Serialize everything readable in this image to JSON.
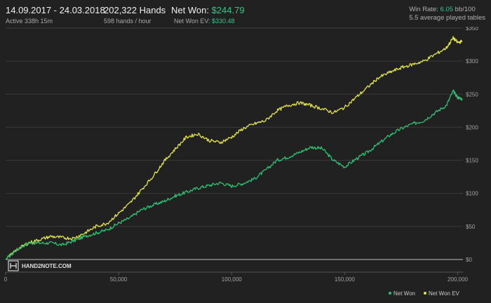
{
  "header": {
    "date_range": "14.09.2017 - 24.03.2018",
    "active": "Active 338h 15m",
    "hands": "202,322 Hands",
    "hands_per_hour": "598 hands / hour",
    "net_won_label": "Net Won: ",
    "net_won_value": "$244.79",
    "net_won_ev_label": "Net Won EV: ",
    "net_won_ev_value": "$330.48",
    "win_rate_label": "Win Rate: ",
    "win_rate_value": "6.05",
    "win_rate_unit": " bb/100",
    "avg_tables": "5.5 average played tables"
  },
  "logo": {
    "text": "HAND2NOTE.COM",
    "icon": "hand2note-logo-icon"
  },
  "colors": {
    "net_won": "#2fbf71",
    "net_won_ev": "#e3e44a",
    "background": "#212121",
    "grid": "#3a3a3a",
    "accent_green": "#36c488"
  },
  "chart_data": {
    "type": "line",
    "title": "",
    "xlabel": "",
    "ylabel": "",
    "xlim": [
      0,
      202322
    ],
    "ylim": [
      0,
      350
    ],
    "grid": true,
    "legend": "bottom-right",
    "x_ticks": [
      0,
      50000,
      100000,
      150000,
      200000
    ],
    "x_tick_labels": [
      "0",
      "50,000",
      "100,000",
      "150,000",
      "200,000"
    ],
    "y_ticks": [
      0,
      50,
      100,
      150,
      200,
      250,
      300,
      350
    ],
    "y_tick_labels": [
      "$0",
      "$50",
      "$100",
      "$150",
      "$200",
      "$250",
      "$300",
      "$350"
    ],
    "series": [
      {
        "name": "Net Won",
        "color": "#2fbf71",
        "x": [
          0,
          5000,
          10000,
          15000,
          20000,
          25000,
          30000,
          35000,
          40000,
          45000,
          50000,
          55000,
          60000,
          65000,
          70000,
          75000,
          80000,
          85000,
          90000,
          95000,
          100000,
          105000,
          110000,
          115000,
          120000,
          125000,
          130000,
          135000,
          140000,
          145000,
          150000,
          155000,
          160000,
          165000,
          170000,
          175000,
          180000,
          185000,
          190000,
          195000,
          198000,
          200000,
          202000
        ],
        "y": [
          0,
          15,
          25,
          25,
          25,
          22,
          28,
          35,
          40,
          45,
          55,
          63,
          75,
          82,
          88,
          96,
          102,
          108,
          112,
          116,
          111,
          115,
          122,
          135,
          150,
          155,
          162,
          170,
          168,
          150,
          140,
          152,
          162,
          175,
          188,
          198,
          205,
          210,
          222,
          233,
          255,
          245,
          243
        ]
      },
      {
        "name": "Net Won  EV",
        "color": "#e3e44a",
        "x": [
          0,
          5000,
          10000,
          15000,
          20000,
          25000,
          30000,
          35000,
          40000,
          45000,
          50000,
          55000,
          60000,
          65000,
          70000,
          75000,
          80000,
          85000,
          90000,
          95000,
          100000,
          105000,
          110000,
          115000,
          120000,
          125000,
          130000,
          135000,
          140000,
          145000,
          150000,
          155000,
          160000,
          165000,
          170000,
          175000,
          180000,
          185000,
          190000,
          195000,
          198000,
          200000,
          202000
        ],
        "y": [
          0,
          15,
          25,
          30,
          35,
          33,
          32,
          40,
          50,
          55,
          70,
          85,
          105,
          125,
          148,
          167,
          185,
          190,
          180,
          177,
          185,
          198,
          205,
          210,
          225,
          233,
          237,
          233,
          228,
          222,
          230,
          245,
          260,
          275,
          283,
          290,
          295,
          300,
          310,
          320,
          335,
          328,
          330
        ]
      }
    ]
  }
}
